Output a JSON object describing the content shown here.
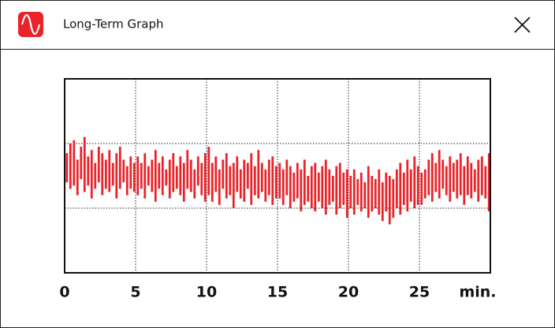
{
  "window": {
    "title": "Long-Term Graph"
  },
  "chart_data": {
    "type": "range-bar",
    "color": "#e8232a",
    "x_unit": "min.",
    "xlim": [
      0,
      30
    ],
    "xticks": [
      0,
      5,
      10,
      15,
      20,
      25
    ],
    "ylim": [
      0,
      3
    ],
    "ygrid": [
      1,
      2
    ],
    "grid": true,
    "x": [
      0,
      0.25,
      0.5,
      0.75,
      1,
      1.25,
      1.5,
      1.75,
      2,
      2.25,
      2.5,
      2.75,
      3,
      3.25,
      3.5,
      3.75,
      4,
      4.25,
      4.5,
      4.75,
      5,
      5.25,
      5.5,
      5.75,
      6,
      6.25,
      6.5,
      6.75,
      7,
      7.25,
      7.5,
      7.75,
      8,
      8.25,
      8.5,
      8.75,
      9,
      9.25,
      9.5,
      9.75,
      10,
      10.25,
      10.5,
      10.75,
      11,
      11.25,
      11.5,
      11.75,
      12,
      12.25,
      12.5,
      12.75,
      13,
      13.25,
      13.5,
      13.75,
      14,
      14.25,
      14.5,
      14.75,
      15,
      15.25,
      15.5,
      15.75,
      16,
      16.25,
      16.5,
      16.75,
      17,
      17.25,
      17.5,
      17.75,
      18,
      18.25,
      18.5,
      18.75,
      19,
      19.25,
      19.5,
      19.75,
      20,
      20.25,
      20.5,
      20.75,
      21,
      21.25,
      21.5,
      21.75,
      22,
      22.25,
      22.5,
      22.75,
      23,
      23.25,
      23.5,
      23.75,
      24,
      24.25,
      24.5,
      24.75,
      25,
      25.25,
      25.5,
      25.75,
      26,
      26.25,
      26.5,
      26.75,
      27,
      27.25,
      27.5,
      27.75,
      28,
      28.25,
      28.5,
      28.75,
      29,
      29.25,
      29.5,
      29.75
    ],
    "high": [
      1.85,
      2.0,
      2.05,
      1.75,
      1.95,
      2.1,
      1.8,
      1.9,
      1.7,
      1.95,
      1.85,
      1.75,
      1.9,
      1.7,
      1.85,
      1.95,
      1.75,
      1.65,
      1.8,
      1.7,
      1.8,
      1.7,
      1.85,
      1.65,
      1.75,
      1.9,
      1.7,
      1.8,
      1.6,
      1.75,
      1.85,
      1.65,
      1.8,
      1.7,
      1.9,
      1.75,
      1.6,
      1.8,
      1.7,
      1.85,
      1.95,
      1.7,
      1.8,
      1.6,
      1.75,
      1.85,
      1.65,
      1.7,
      1.8,
      1.6,
      1.75,
      1.7,
      1.85,
      1.65,
      1.9,
      1.7,
      1.6,
      1.75,
      1.8,
      1.65,
      1.7,
      1.6,
      1.75,
      1.65,
      1.55,
      1.7,
      1.6,
      1.75,
      1.5,
      1.65,
      1.7,
      1.55,
      1.65,
      1.75,
      1.6,
      1.5,
      1.65,
      1.7,
      1.55,
      1.6,
      1.5,
      1.6,
      1.45,
      1.55,
      1.4,
      1.65,
      1.5,
      1.45,
      1.6,
      1.4,
      1.55,
      1.5,
      1.45,
      1.6,
      1.7,
      1.55,
      1.75,
      1.6,
      1.8,
      1.65,
      1.55,
      1.6,
      1.75,
      1.85,
      1.7,
      1.9,
      1.75,
      1.65,
      1.8,
      1.7,
      1.75,
      1.85,
      1.65,
      1.8,
      1.7,
      1.6,
      1.75,
      1.8,
      1.65,
      1.85
    ],
    "low": [
      1.4,
      1.3,
      1.35,
      1.2,
      1.45,
      1.25,
      1.35,
      1.15,
      1.3,
      1.4,
      1.2,
      1.3,
      1.25,
      1.35,
      1.15,
      1.3,
      1.4,
      1.2,
      1.3,
      1.25,
      1.2,
      1.3,
      1.15,
      1.35,
      1.25,
      1.1,
      1.3,
      1.2,
      1.35,
      1.15,
      1.25,
      1.3,
      1.2,
      1.1,
      1.3,
      1.25,
      1.15,
      1.35,
      1.2,
      1.1,
      1.2,
      1.1,
      1.25,
      1.05,
      1.3,
      1.15,
      1.2,
      1.0,
      1.25,
      1.15,
      1.1,
      1.3,
      1.05,
      1.2,
      1.15,
      1.25,
      1.1,
      1.2,
      1.05,
      1.15,
      1.15,
      1.05,
      1.2,
      1.0,
      1.1,
      1.15,
      0.95,
      1.05,
      1.1,
      1.0,
      0.95,
      1.1,
      1.0,
      0.9,
      1.05,
      1.1,
      0.9,
      1.0,
      1.05,
      0.85,
      1.0,
      0.9,
      1.05,
      0.95,
      1.0,
      0.85,
      0.95,
      1.0,
      0.9,
      0.8,
      0.95,
      0.75,
      0.85,
      1.0,
      0.9,
      1.05,
      0.95,
      1.1,
      1.0,
      1.05,
      1.05,
      1.15,
      1.2,
      1.1,
      1.25,
      1.15,
      1.3,
      1.2,
      1.1,
      1.25,
      1.15,
      1.2,
      1.05,
      1.2,
      1.15,
      1.25,
      1.1,
      1.2,
      1.15,
      0.95
    ]
  }
}
